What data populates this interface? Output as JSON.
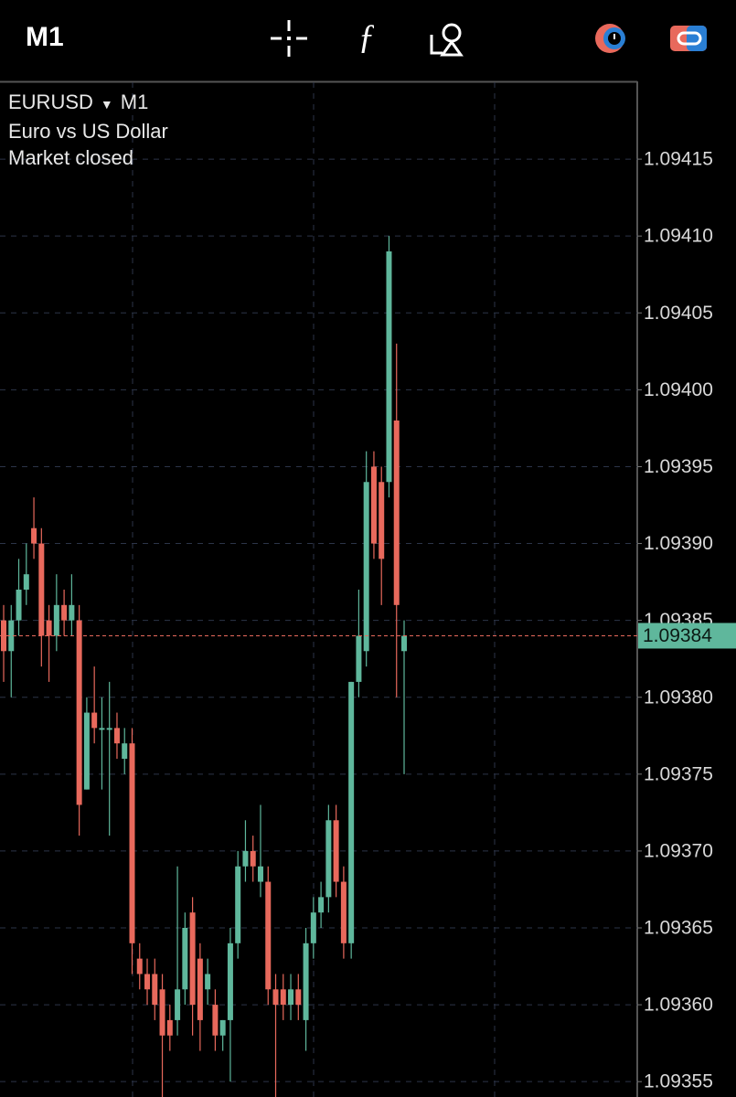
{
  "toolbar": {
    "timeframe": "M1"
  },
  "header": {
    "symbol": "EURUSD",
    "timeframe": "M1",
    "description": "Euro vs US Dollar",
    "status": "Market closed"
  },
  "chart_data": {
    "type": "candlestick",
    "up_color": "#5fb79c",
    "down_color": "#e8695c",
    "ylim": [
      1.09354,
      1.0942
    ],
    "yticks": [
      1.09355,
      {
        "value": 1.0936,
        "label": "1.09360"
      },
      1.09365,
      {
        "value": 1.0937,
        "label": "1.09370"
      },
      1.09375,
      {
        "value": 1.0938,
        "label": "1.09380"
      },
      1.09385,
      {
        "value": 1.0939,
        "label": "1.09390"
      },
      1.09395,
      {
        "value": 1.094,
        "label": "1.09400"
      },
      1.09405,
      {
        "value": 1.0941,
        "label": "1.09410"
      },
      1.09415
    ],
    "grid": true,
    "last_price": 1.09384,
    "last_price_color": "#5fb79c",
    "series": [
      {
        "open": [
          1.09385,
          1.09383,
          1.09385,
          1.09387,
          1.09391,
          1.0939,
          1.09385,
          1.09384,
          1.09386,
          1.09385,
          1.09385,
          1.09374,
          1.09379,
          1.09378,
          1.09378,
          1.09378,
          1.09376,
          1.09377,
          1.09363,
          1.09362,
          1.09362,
          1.09361,
          1.09359,
          1.09359,
          1.09361,
          1.09366,
          1.09363,
          1.09361,
          1.0936,
          1.09358,
          1.09359,
          1.09364,
          1.09369,
          1.0937,
          1.09368,
          1.09368,
          1.09361,
          1.09361,
          1.0936,
          1.09361,
          1.09359,
          1.09364,
          1.09366,
          1.09367,
          1.09372,
          1.09368,
          1.09364,
          1.09381,
          1.09383,
          1.09395,
          1.09394,
          1.09394,
          1.09398,
          1.09383
        ],
        "high": [
          1.09386,
          1.09386,
          1.09389,
          1.0939,
          1.09393,
          1.09391,
          1.09386,
          1.09388,
          1.09387,
          1.09388,
          1.09386,
          1.0938,
          1.09382,
          1.0938,
          1.09381,
          1.09379,
          1.09378,
          1.09378,
          1.09364,
          1.09363,
          1.09363,
          1.09362,
          1.0936,
          1.09369,
          1.09366,
          1.09367,
          1.09364,
          1.09363,
          1.09361,
          1.09359,
          1.09365,
          1.0937,
          1.09372,
          1.09371,
          1.09373,
          1.09369,
          1.09362,
          1.09362,
          1.09362,
          1.09362,
          1.09365,
          1.09367,
          1.09368,
          1.09373,
          1.09373,
          1.09369,
          1.09381,
          1.09387,
          1.09396,
          1.09396,
          1.09395,
          1.0941,
          1.09403,
          1.09385
        ],
        "low": [
          1.09381,
          1.0938,
          1.09384,
          1.09386,
          1.09389,
          1.09382,
          1.09381,
          1.09383,
          1.09384,
          1.09384,
          1.09371,
          1.09374,
          1.09377,
          1.09374,
          1.09371,
          1.09376,
          1.09375,
          1.09362,
          1.09361,
          1.0936,
          1.09359,
          1.09353,
          1.09357,
          1.09358,
          1.0936,
          1.09358,
          1.09357,
          1.0936,
          1.09357,
          1.09357,
          1.09355,
          1.09363,
          1.09368,
          1.09368,
          1.09367,
          1.0936,
          1.09353,
          1.09359,
          1.09359,
          1.09359,
          1.09357,
          1.09363,
          1.09365,
          1.09366,
          1.09367,
          1.09363,
          1.09363,
          1.0938,
          1.09382,
          1.09389,
          1.09386,
          1.09393,
          1.0938,
          1.09375
        ],
        "close": [
          1.09383,
          1.09385,
          1.09387,
          1.09388,
          1.0939,
          1.09384,
          1.09384,
          1.09386,
          1.09385,
          1.09386,
          1.09373,
          1.09379,
          1.09378,
          1.09378,
          1.09378,
          1.09377,
          1.09377,
          1.09364,
          1.09362,
          1.09361,
          1.0936,
          1.09358,
          1.09358,
          1.09361,
          1.09365,
          1.0936,
          1.09359,
          1.09362,
          1.09358,
          1.09359,
          1.09364,
          1.09369,
          1.0937,
          1.09369,
          1.09369,
          1.09361,
          1.0936,
          1.0936,
          1.09361,
          1.0936,
          1.09364,
          1.09366,
          1.09367,
          1.09372,
          1.09368,
          1.09364,
          1.09381,
          1.09384,
          1.09394,
          1.0939,
          1.09389,
          1.09409,
          1.09386,
          1.09384
        ]
      }
    ]
  }
}
